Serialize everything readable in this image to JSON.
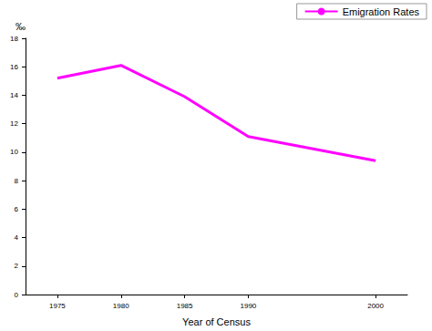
{
  "chart_data": {
    "type": "line",
    "x_label": "Year of Census",
    "y_label": "‰",
    "x": [
      1975,
      1980,
      1985,
      1990,
      2000
    ],
    "series": [
      {
        "name": "Emigration Rates",
        "color": "#ff00ff",
        "values": [
          15.2,
          16.1,
          13.9,
          11.1,
          9.4
        ]
      }
    ],
    "xlim": [
      1972.5,
      2002.5
    ],
    "xticks": [
      1975,
      1980,
      1985,
      1990,
      2000
    ],
    "ylim": [
      0,
      18
    ],
    "yticks": [
      0,
      2,
      4,
      6,
      8,
      10,
      12,
      14,
      16,
      18
    ],
    "grid": false,
    "legend": "top-right"
  }
}
